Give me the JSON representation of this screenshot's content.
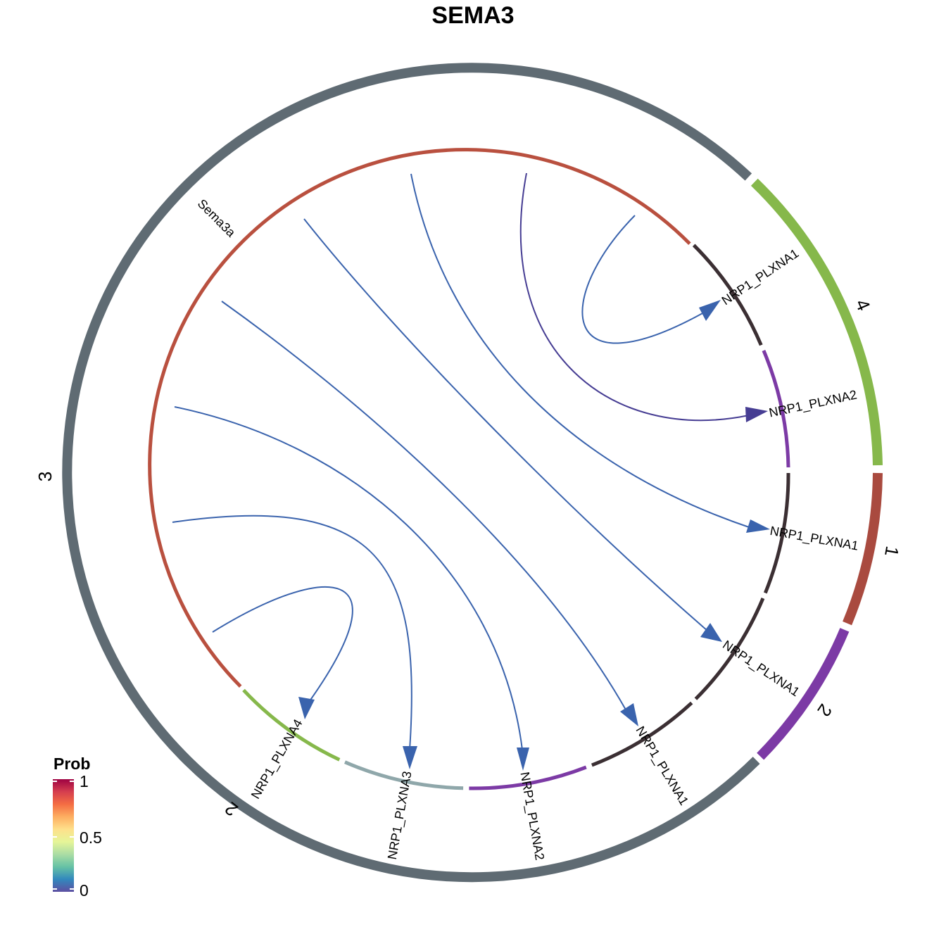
{
  "title": "SEMA3",
  "colors": {
    "group_3": "#5f6b73",
    "group_4": "#86b84b",
    "group_1": "#a94a3f",
    "group_2": "#7c3aa5",
    "sema3a": "#b9503f",
    "receptor_dark": "#3b2f33",
    "receptor_purple": "#7c3aa5",
    "receptor_green": "#86b84b",
    "receptor_gray": "#8fa7aa",
    "link_blue": "#3a63ad",
    "link_indigo": "#463d93"
  },
  "outer_groups": [
    {
      "label": "3",
      "color": "group_3"
    },
    {
      "label": "4",
      "color": "group_4"
    },
    {
      "label": "1",
      "color": "group_1"
    },
    {
      "label": "2",
      "color": "group_2"
    },
    {
      "label": "2",
      "color": "group_3"
    }
  ],
  "inner_sectors": [
    {
      "label": "Sema3a",
      "color": "sema3a"
    },
    {
      "label": "NRP1_PLXNA1",
      "color": "receptor_dark"
    },
    {
      "label": "NRP1_PLXNA2",
      "color": "receptor_purple"
    },
    {
      "label": "NRP1_PLXNA1",
      "color": "receptor_dark"
    },
    {
      "label": "NRP1_PLXNA1",
      "color": "receptor_dark"
    },
    {
      "label": "NRP1_PLXNA1",
      "color": "receptor_dark"
    },
    {
      "label": "NRP1_PLXNA2",
      "color": "receptor_purple"
    },
    {
      "label": "NRP1_PLXNA3",
      "color": "receptor_gray"
    },
    {
      "label": "NRP1_PLXNA4",
      "color": "receptor_green"
    }
  ],
  "links": [
    {
      "source": "Sema3a",
      "target": "NRP1_PLXNA1",
      "target_group": "4",
      "prob": 0.12,
      "color": "link_blue"
    },
    {
      "source": "Sema3a",
      "target": "NRP1_PLXNA2",
      "target_group": "4",
      "prob": 0.02,
      "color": "link_indigo"
    },
    {
      "source": "Sema3a",
      "target": "NRP1_PLXNA1",
      "target_group": "1",
      "prob": 0.12,
      "color": "link_blue"
    },
    {
      "source": "Sema3a",
      "target": "NRP1_PLXNA1",
      "target_group": "2",
      "prob": 0.12,
      "color": "link_blue"
    },
    {
      "source": "Sema3a",
      "target": "NRP1_PLXNA1",
      "target_group": "3",
      "prob": 0.12,
      "color": "link_blue"
    },
    {
      "source": "Sema3a",
      "target": "NRP1_PLXNA2",
      "target_group": "3",
      "prob": 0.06,
      "color": "link_blue"
    },
    {
      "source": "Sema3a",
      "target": "NRP1_PLXNA3",
      "target_group": "3",
      "prob": 0.06,
      "color": "link_blue"
    },
    {
      "source": "Sema3a",
      "target": "NRP1_PLXNA4",
      "target_group": "3",
      "prob": 0.12,
      "color": "link_blue"
    }
  ],
  "legend": {
    "title": "Prob",
    "ticks": [
      "1",
      "0.5",
      "0"
    ],
    "gradient": [
      "#5e4fa2",
      "#3288bd",
      "#66c2a5",
      "#abdda4",
      "#e6f598",
      "#fee08b",
      "#fdae61",
      "#f46d43",
      "#d53e4f",
      "#9e0142"
    ]
  }
}
